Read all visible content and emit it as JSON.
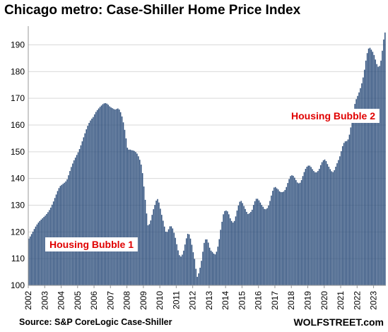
{
  "chart_data": {
    "type": "bar",
    "title": "Chicago metro: Case-Shiller Home Price Index",
    "source": "Source: S&P CoreLogic Case-Shiller",
    "brand": "WOLFSTREET.com",
    "xlabel": "",
    "ylabel": "",
    "ylim": [
      100,
      197
    ],
    "y_ticks": [
      "100",
      "110",
      "120",
      "130",
      "140",
      "150",
      "160",
      "170",
      "180",
      "190"
    ],
    "x_ticks": [
      "2002",
      "2003",
      "2004",
      "2005",
      "2006",
      "2007",
      "2008",
      "2009",
      "2010",
      "2011",
      "2012",
      "2013",
      "2014",
      "2015",
      "2016",
      "2017",
      "2018",
      "2019",
      "2020",
      "2021",
      "2022",
      "2023"
    ],
    "grid": true,
    "bar_color": "#2e4f7c",
    "annotation_color": "#e00000",
    "annotations": [
      {
        "text": "Housing Bubble 1"
      },
      {
        "text": "Housing Bubble 2"
      }
    ],
    "frequency": "monthly",
    "start": "2002-01",
    "values": [
      117.5,
      118.3,
      119.2,
      120.1,
      121.1,
      122.0,
      122.8,
      123.5,
      124.1,
      124.6,
      125.1,
      125.6,
      126.1,
      126.7,
      127.4,
      128.2,
      129.1,
      130.2,
      131.4,
      132.7,
      134.0,
      135.3,
      136.4,
      137.2,
      137.6,
      138.0,
      138.4,
      138.9,
      139.7,
      141.2,
      142.8,
      144.3,
      145.6,
      146.8,
      147.8,
      148.8,
      149.8,
      151.0,
      152.4,
      153.9,
      155.4,
      156.9,
      158.4,
      159.7,
      160.8,
      161.7,
      162.4,
      163.0,
      164.0,
      164.9,
      165.6,
      166.2,
      166.8,
      167.3,
      167.8,
      168.1,
      168.2,
      168.0,
      167.6,
      167.0,
      166.6,
      166.3,
      166.0,
      165.8,
      166.0,
      166.2,
      165.8,
      164.8,
      163.2,
      161.0,
      158.2,
      155.0,
      151.5,
      150.8,
      150.8,
      150.6,
      150.5,
      150.3,
      149.9,
      149.3,
      148.3,
      147.0,
      145.2,
      142.0,
      137.0,
      132.0,
      126.9,
      122.5,
      122.9,
      124.3,
      126.4,
      128.5,
      130.1,
      131.7,
      132.3,
      131.0,
      128.7,
      126.4,
      124.2,
      122.0,
      120.1,
      120.0,
      121.0,
      122.1,
      122.1,
      121.3,
      119.7,
      117.8,
      115.4,
      113.1,
      111.3,
      110.8,
      111.5,
      113.0,
      115.3,
      117.6,
      119.3,
      119.1,
      117.5,
      115.2,
      112.4,
      109.9,
      106.2,
      103.2,
      104.5,
      106.6,
      109.2,
      112.6,
      115.9,
      117.2,
      117.2,
      116.0,
      114.1,
      113.0,
      112.5,
      111.9,
      111.6,
      112.6,
      114.5,
      117.3,
      120.8,
      123.8,
      126.6,
      127.8,
      128.0,
      127.7,
      126.6,
      125.1,
      124.1,
      123.5,
      124.1,
      125.8,
      128.0,
      129.9,
      131.3,
      131.6,
      130.8,
      129.7,
      128.6,
      127.5,
      126.7,
      127.0,
      127.5,
      128.3,
      130.1,
      131.5,
      132.4,
      132.4,
      131.8,
      131.0,
      130.1,
      129.4,
      128.6,
      128.5,
      128.9,
      129.9,
      131.6,
      133.6,
      135.4,
      136.6,
      136.8,
      136.3,
      135.9,
      135.2,
      134.9,
      134.9,
      135.1,
      135.7,
      136.8,
      138.3,
      139.8,
      140.9,
      141.2,
      141.0,
      140.3,
      139.4,
      138.5,
      138.2,
      138.4,
      139.4,
      140.9,
      142.4,
      143.6,
      144.4,
      144.8,
      144.8,
      144.3,
      143.5,
      142.8,
      142.3,
      142.3,
      142.8,
      143.6,
      145.0,
      146.1,
      146.8,
      147.1,
      146.5,
      145.4,
      144.4,
      143.5,
      142.7,
      142.4,
      143.1,
      144.4,
      145.7,
      146.9,
      148.3,
      150.2,
      152.1,
      153.3,
      153.9,
      154.0,
      154.6,
      156.4,
      159.1,
      162.7,
      166.0,
      167.9,
      169.7,
      170.9,
      172.2,
      173.8,
      175.6,
      177.8,
      180.7,
      184.1,
      186.9,
      188.6,
      188.9,
      188.2,
      187.4,
      186.2,
      184.5,
      182.8,
      181.8,
      182.1,
      184.1,
      187.8,
      192.0,
      194.6
    ]
  }
}
